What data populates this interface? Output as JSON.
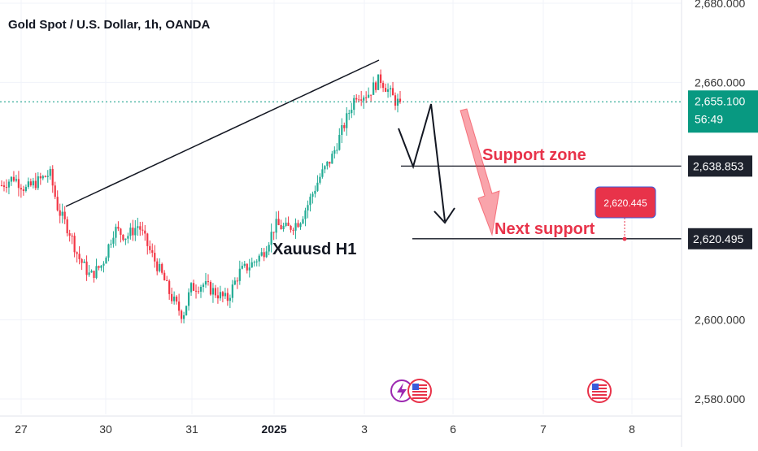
{
  "chart_data": {
    "type": "candlestick",
    "title": "Gold Spot / U.S. Dollar, 1h, OANDA",
    "y_ticks": [
      "2,680.000",
      "2,660.000",
      "2,600.000",
      "2,580.000"
    ],
    "y_range": [
      2578,
      2682
    ],
    "x_ticks": [
      {
        "label": "27",
        "bold": false
      },
      {
        "label": "30",
        "bold": false
      },
      {
        "label": "31",
        "bold": false
      },
      {
        "label": "2025",
        "bold": true
      },
      {
        "label": "3",
        "bold": false
      },
      {
        "label": "6",
        "bold": false
      },
      {
        "label": "7",
        "bold": false
      },
      {
        "label": "8",
        "bold": false
      }
    ],
    "current_price": {
      "price": 2655.1,
      "label": "2,655.100",
      "countdown": "56:49"
    },
    "price_tags": [
      {
        "price": 2638.853,
        "label": "2,638.853"
      },
      {
        "price": 2620.495,
        "label": "2,620.495"
      }
    ],
    "target_marker": {
      "price": 2620.445,
      "label": "2,620.445"
    },
    "annotations": {
      "support_zone": "Support zone",
      "next_support": "Next support",
      "symbol_note": "Xauusd H1"
    },
    "candle_path": [
      [
        0,
        2634
      ],
      [
        3,
        2636
      ],
      [
        6,
        2633
      ],
      [
        9,
        2635
      ],
      [
        12,
        2637
      ],
      [
        14,
        2628
      ],
      [
        17,
        2622
      ],
      [
        19,
        2616
      ],
      [
        22,
        2611
      ],
      [
        25,
        2614
      ],
      [
        28,
        2623
      ],
      [
        31,
        2621
      ],
      [
        34,
        2624
      ],
      [
        37,
        2617
      ],
      [
        40,
        2611
      ],
      [
        42,
        2606
      ],
      [
        45,
        2601
      ],
      [
        47,
        2608
      ],
      [
        50,
        2609
      ],
      [
        53,
        2607
      ],
      [
        56,
        2605
      ],
      [
        59,
        2612
      ],
      [
        62,
        2614
      ],
      [
        65,
        2617
      ],
      [
        68,
        2624
      ],
      [
        71,
        2623
      ],
      [
        74,
        2625
      ],
      [
        76,
        2629
      ],
      [
        79,
        2636
      ],
      [
        82,
        2641
      ],
      [
        85,
        2649
      ],
      [
        88,
        2657
      ],
      [
        91,
        2657
      ],
      [
        94,
        2661
      ],
      [
        96,
        2658
      ],
      [
        98,
        2655
      ],
      [
        99,
        2655.1
      ]
    ],
    "colors": {
      "up": "#22ab94",
      "down": "#f23645",
      "current": "#089981",
      "tag": "#1e222d",
      "marker": "#e8334a"
    }
  }
}
